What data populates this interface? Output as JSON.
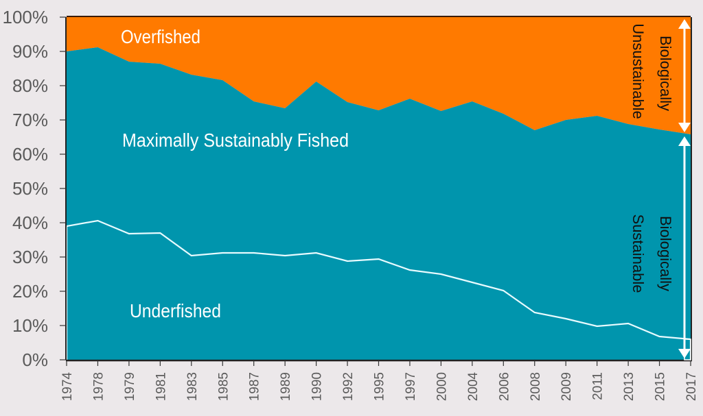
{
  "chart_data": {
    "type": "area",
    "title": "",
    "xlabel": "",
    "ylabel": "",
    "ylim": [
      0,
      100
    ],
    "grid": false,
    "categories": [
      "1974",
      "1978",
      "1979",
      "1981",
      "1983",
      "1985",
      "1987",
      "1989",
      "1990",
      "1992",
      "1995",
      "1997",
      "2000",
      "2004",
      "2006",
      "2008",
      "2009",
      "2011",
      "2013",
      "2015",
      "2017"
    ],
    "y_ticks": [
      "0%",
      "10%",
      "20%",
      "30%",
      "40%",
      "50%",
      "60%",
      "70%",
      "80%",
      "90%",
      "100%"
    ],
    "series": [
      {
        "name": "Underfished",
        "values": [
          39,
          40.6,
          36.8,
          37,
          30.4,
          31.2,
          31.2,
          30.4,
          31.2,
          28.8,
          29.4,
          26.2,
          25,
          22.6,
          20.2,
          13.8,
          12,
          9.8,
          10.6,
          6.8,
          6
        ]
      },
      {
        "name": "Maximally Sustainably Fished (cumulative top)",
        "values": [
          90,
          91.2,
          87,
          86.4,
          83.2,
          81.6,
          75.4,
          73.4,
          81.2,
          75.2,
          72.8,
          76.2,
          72.6,
          75.4,
          71.8,
          67,
          70,
          71.2,
          68.8,
          67.2,
          65.8
        ]
      },
      {
        "name": "Overfished (cumulative top)",
        "values": [
          100,
          100,
          100,
          100,
          100,
          100,
          100,
          100,
          100,
          100,
          100,
          100,
          100,
          100,
          100,
          100,
          100,
          100,
          100,
          100,
          100
        ]
      }
    ],
    "annotations": {
      "overfished": "Overfished",
      "max_sustainable": "Maximally Sustainably Fished",
      "underfished": "Underfished",
      "unsustainable_line1": "Biologically",
      "unsustainable_line2": "Unsustainable",
      "sustainable_line1": "Biologically",
      "sustainable_line2": "Sustainable"
    },
    "colors": {
      "overfished": "#ff7a00",
      "sustainable": "#0095ad",
      "underfished_line": "#e8fbff",
      "axis": "#222222"
    },
    "legend": "none"
  }
}
